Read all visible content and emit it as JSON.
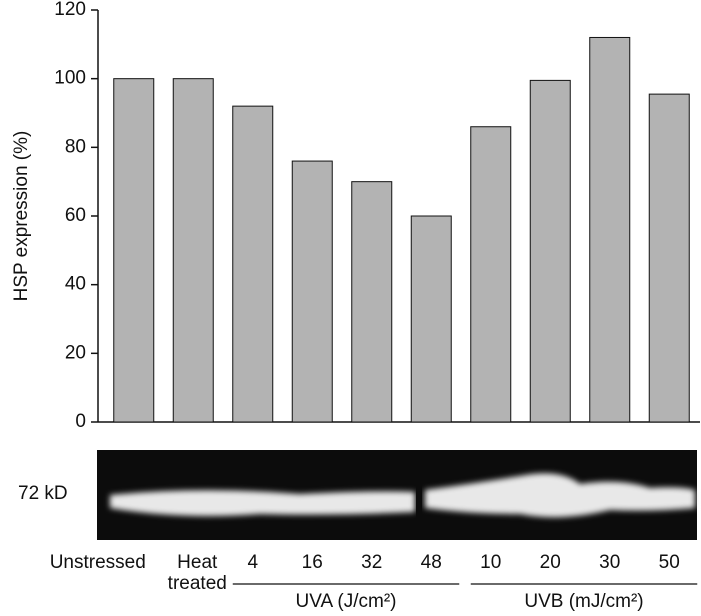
{
  "chart_data": {
    "type": "bar",
    "y_label": "HSP expression (%)",
    "categories": [
      "Unstressed",
      "Heat treated",
      "4",
      "16",
      "32",
      "48",
      "10",
      "20",
      "30",
      "50"
    ],
    "values": [
      100,
      100,
      92,
      76,
      70,
      60,
      86,
      99.5,
      112,
      95.5
    ],
    "color": "#b3b3b3",
    "ylim": [
      0,
      120
    ],
    "yticks": [
      0,
      20,
      40,
      60,
      80,
      100,
      120
    ],
    "groups": [
      {
        "label": "UVA (J/cm²)",
        "from": 2,
        "to": 5
      },
      {
        "label": "UVB (mJ/cm²)",
        "from": 6,
        "to": 9
      }
    ],
    "blot_label": "72 kD"
  }
}
